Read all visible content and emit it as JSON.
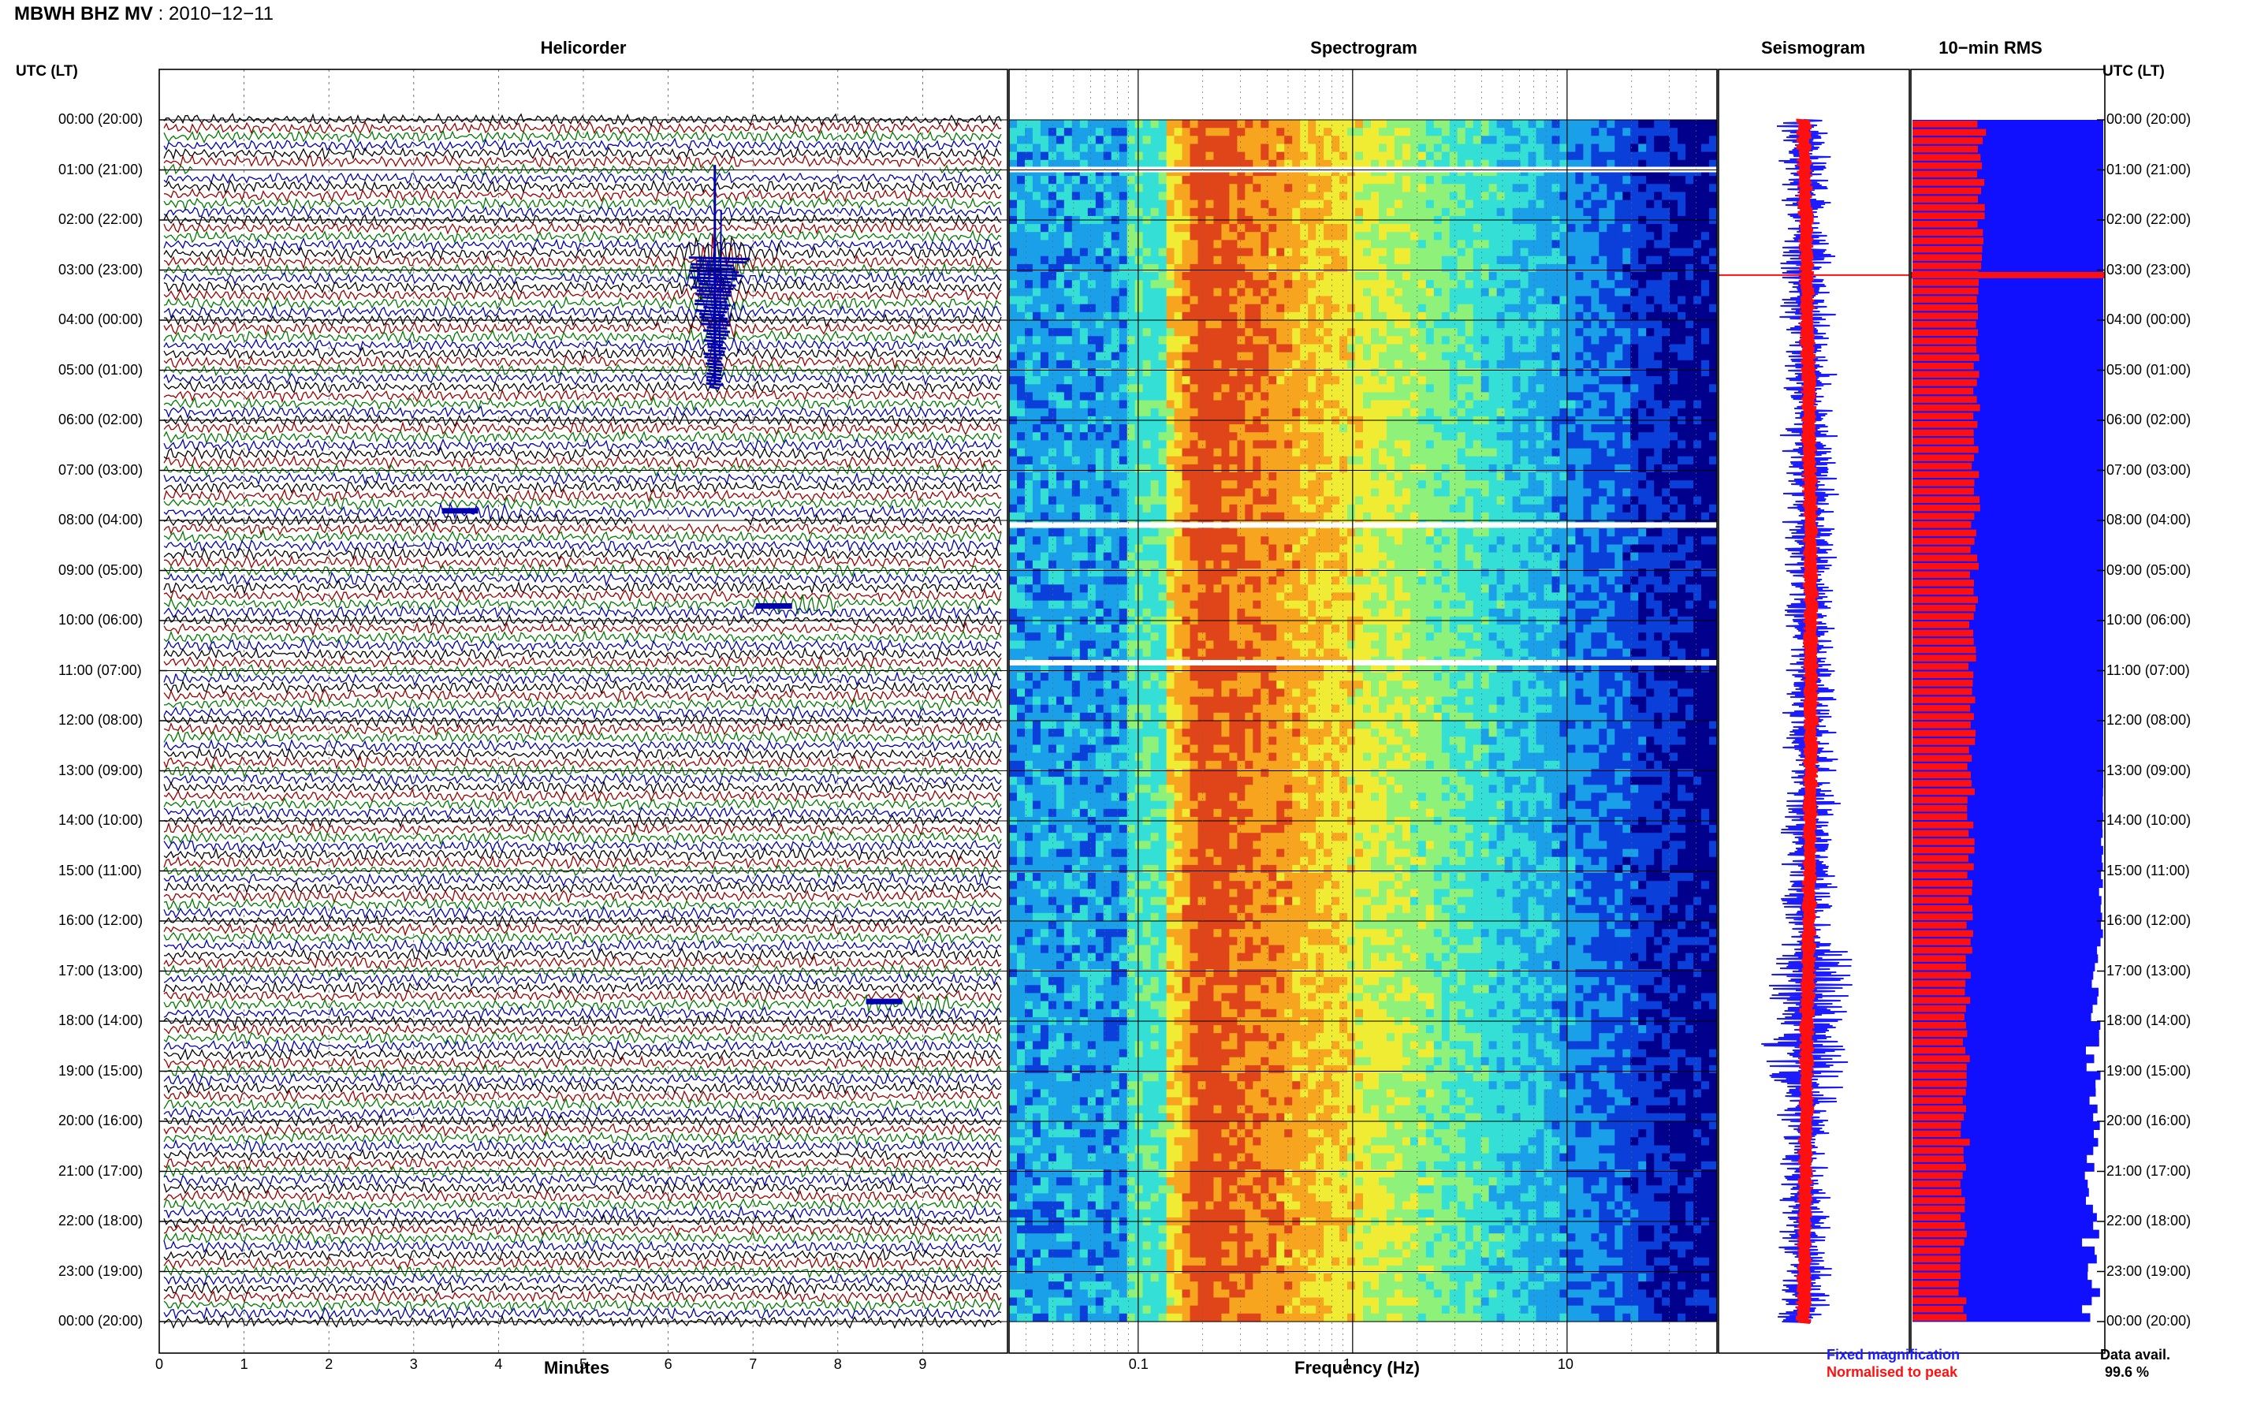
{
  "header": {
    "station": "MBWH BHZ MV",
    "date_sep": " : ",
    "date": "2010−12−11"
  },
  "panels": {
    "helicorder": "Helicorder",
    "spectrogram": "Spectrogram",
    "seismogram": "Seismogram",
    "rms": "10−min RMS"
  },
  "tz_label": "UTC (LT)",
  "chart_data": [
    {
      "type": "line",
      "title": "Helicorder",
      "xlabel": "Minutes",
      "x_ticks": [
        "0",
        "1",
        "2",
        "3",
        "4",
        "5",
        "6",
        "7",
        "8",
        "9"
      ],
      "xlim": [
        0,
        10
      ],
      "y_ticks": [
        "00:00 (20:00)",
        "01:00 (21:00)",
        "02:00 (22:00)",
        "03:00 (23:00)",
        "04:00 (00:00)",
        "05:00 (01:00)",
        "06:00 (02:00)",
        "07:00 (03:00)",
        "08:00 (04:00)",
        "09:00 (05:00)",
        "10:00 (06:00)",
        "11:00 (07:00)",
        "12:00 (08:00)",
        "13:00 (09:00)",
        "14:00 (10:00)",
        "15:00 (11:00)",
        "16:00 (12:00)",
        "17:00 (13:00)",
        "18:00 (14:00)",
        "19:00 (15:00)",
        "20:00 (16:00)",
        "21:00 (17:00)",
        "22:00 (18:00)",
        "23:00 (19:00)",
        "00:00 (20:00)"
      ],
      "trace_colors": [
        "#000000",
        "#9b0000",
        "#007a00",
        "#0000b0"
      ],
      "events": [
        {
          "hour": 2.75,
          "minute": 6.55,
          "label": "large event"
        },
        {
          "hour": 7.8,
          "minute": 3.5,
          "label": "small event"
        },
        {
          "hour": 9.7,
          "minute": 7.2,
          "label": "small event"
        },
        {
          "hour": 17.6,
          "minute": 8.5,
          "label": "small event"
        }
      ],
      "gaps": [
        {
          "hour": 1.0,
          "from_minute": 0.4,
          "to_minute": 3.5
        },
        {
          "hour": 1.0,
          "from_minute": 6.8,
          "to_minute": 9.2
        },
        {
          "hour": 8.0,
          "from_minute": 5.6,
          "to_minute": 6.9
        },
        {
          "hour": 11.0,
          "from_minute": 0.0,
          "to_minute": 0.25
        }
      ]
    },
    {
      "type": "heatmap",
      "title": "Spectrogram",
      "xlabel": "Frequency (Hz)",
      "x_scale": "log",
      "xlim": [
        0.025,
        50
      ],
      "x_ticks": [
        {
          "label": "0.1",
          "value": 0.1
        },
        {
          "label": "1",
          "value": 1
        },
        {
          "label": "10",
          "value": 10
        }
      ],
      "colormap": [
        "#00008c",
        "#0a3fd9",
        "#1aa0e8",
        "#34e0d6",
        "#8ef27a",
        "#f0ec33",
        "#f7a41e",
        "#e0451a"
      ],
      "peak_frequency_hz": 0.2,
      "data_gaps_hours": [
        1.0,
        8.1,
        10.85
      ]
    },
    {
      "type": "line",
      "title": "Seismogram",
      "series": [
        {
          "name": "Fixed magnification",
          "color": "#1c1cff"
        },
        {
          "name": "Normalised to peak",
          "color": "#ff1010"
        }
      ],
      "marker_hour": 3.1
    },
    {
      "type": "bar",
      "title": "10−min RMS",
      "series": [
        {
          "name": "Normalised to peak",
          "color": "#ff1010"
        },
        {
          "name": "Fixed magnification",
          "color": "#1010ff"
        }
      ],
      "marker_hour": 3.1
    }
  ],
  "footer": {
    "minutes": "Minutes",
    "frequency": "Frequency (Hz)",
    "legend_fixed": "Fixed magnification",
    "legend_norm": "Normalised to peak",
    "data_avail_label": "Data avail.",
    "data_avail_value": "99.6 %"
  },
  "colors": {
    "fixed": "#1c1cff",
    "normalised": "#ff1010",
    "rms_fill": "#1010ff"
  }
}
